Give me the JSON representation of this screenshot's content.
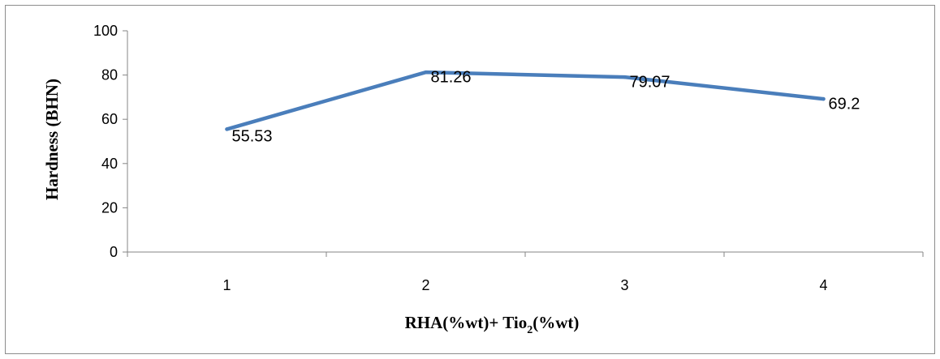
{
  "chart_data": {
    "type": "line",
    "categories": [
      "1",
      "2",
      "3",
      "4"
    ],
    "series": [
      {
        "values": [
          55.53,
          81.26,
          79.07,
          69.2
        ],
        "color": "#4a7ebb"
      }
    ],
    "data_labels": [
      "55.53",
      "81.26",
      "79.07",
      "69.2"
    ],
    "ylabel": "Hardness (BHN)",
    "xlabel": {
      "main": "RHA(%wt)+ Tio",
      "subscript": "2",
      "tail": "(%wt)"
    },
    "ylim": [
      0,
      100
    ],
    "yticks": [
      "0",
      "20",
      "40",
      "60",
      "80",
      "100"
    ],
    "grid": false,
    "legend": "none"
  }
}
